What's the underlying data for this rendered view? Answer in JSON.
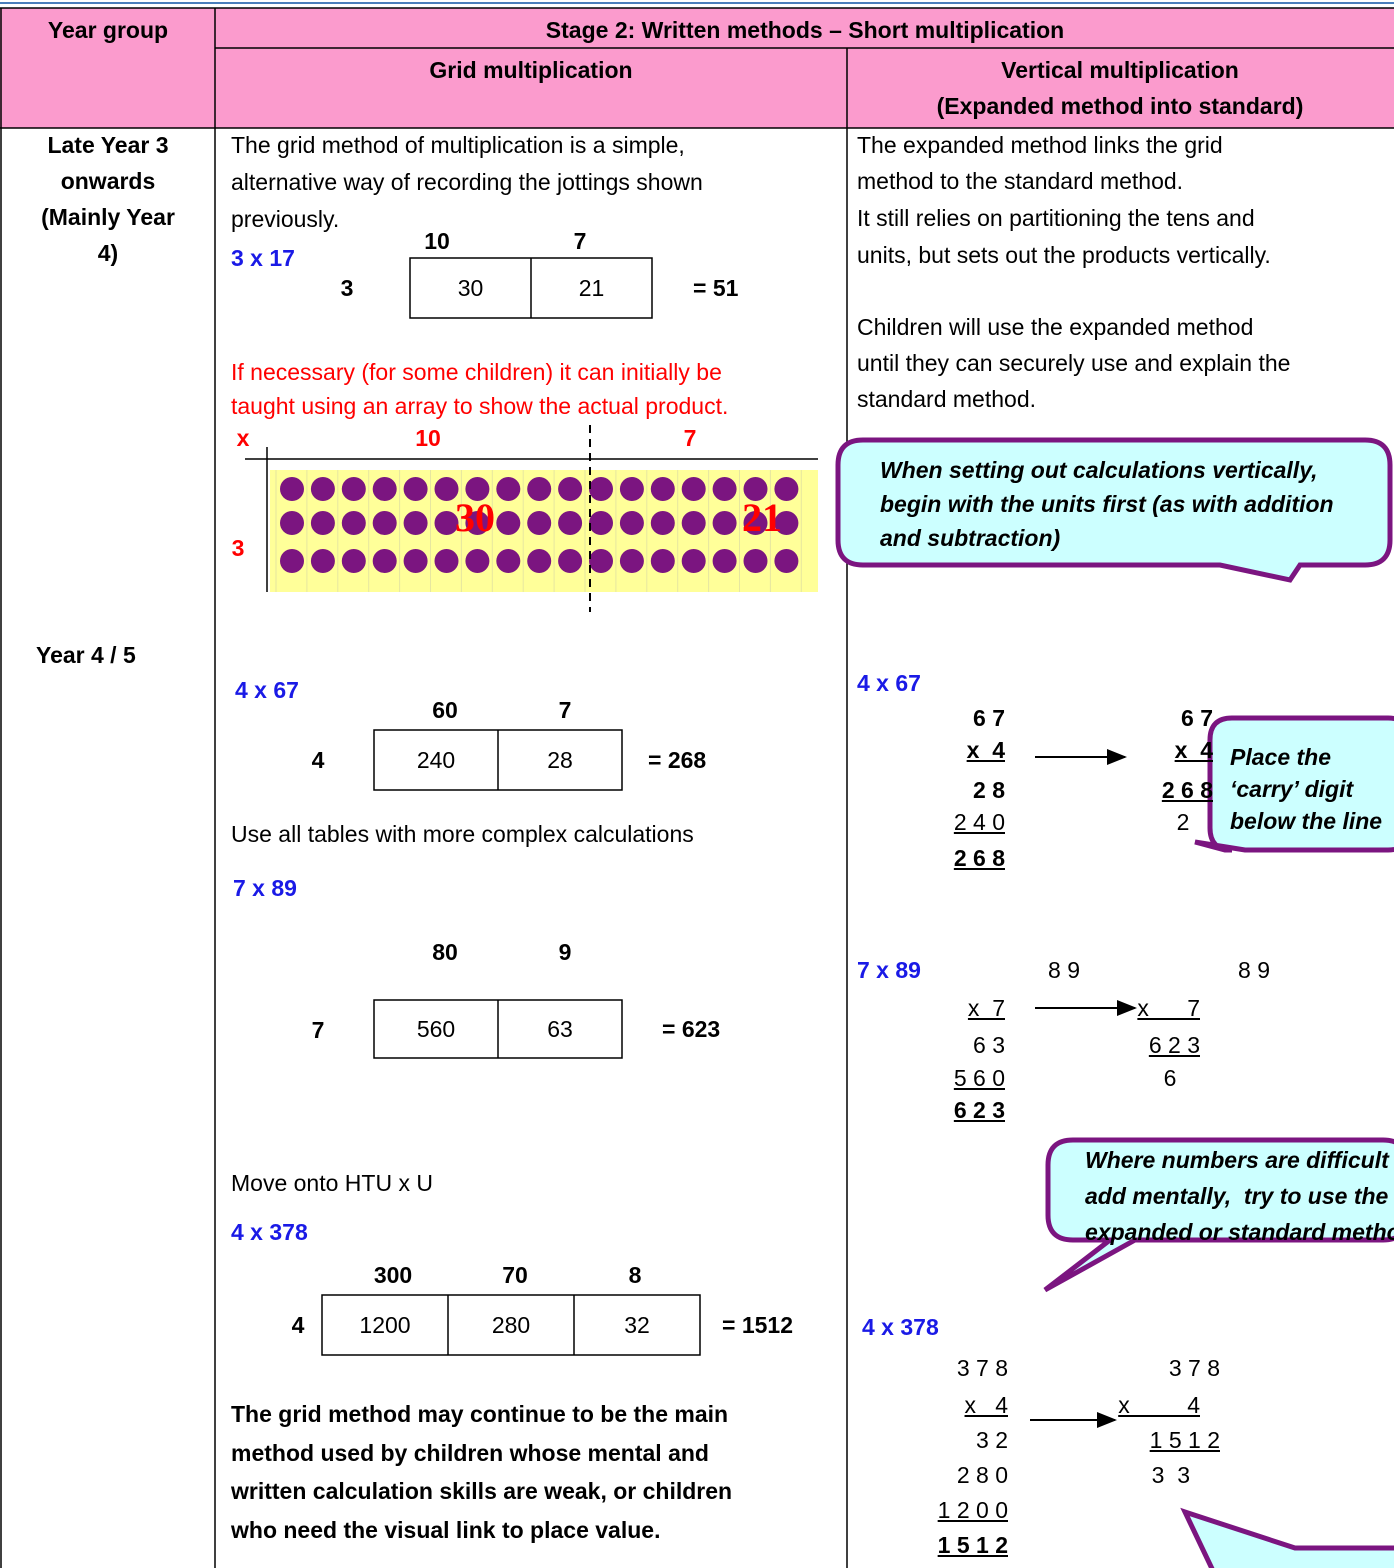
{
  "header": {
    "year_group": "Year group",
    "stage_title": "Stage 2: Written methods – Short multiplication",
    "grid_title": "Grid multiplication",
    "vertical_title": "Vertical multiplication",
    "vertical_subtitle": "(Expanded method into standard)"
  },
  "year_groups": [
    [
      "Late Year 3",
      "onwards",
      "(Mainly Year",
      "4)"
    ],
    [
      "Year 4 / 5"
    ]
  ],
  "grid": {
    "intro": [
      "The grid method of multiplication is a simple,",
      "alternative way of recording the jottings shown",
      "previously."
    ],
    "examples": [
      {
        "label": "3 x 17",
        "columns": [
          "10",
          "7"
        ],
        "row": "3",
        "cells": [
          "30",
          "21"
        ],
        "result": "= 51"
      },
      {
        "label": "4 x 67",
        "columns": [
          "60",
          "7"
        ],
        "row": "4",
        "cells": [
          "240",
          "28"
        ],
        "result": "= 268"
      },
      {
        "label": "7 x 89",
        "columns": [
          "80",
          "9"
        ],
        "row": "7",
        "cells": [
          "560",
          "63"
        ],
        "result": "= 623"
      },
      {
        "label": "4 x 378",
        "columns": [
          "300",
          "70",
          "8"
        ],
        "row": "4",
        "cells": [
          "1200",
          "280",
          "32"
        ],
        "result": "= 1512"
      }
    ],
    "note": [
      "If necessary (for some children) it can initially be",
      "taught using an array to show the actual product."
    ],
    "array": {
      "sign": "x",
      "columns": [
        "10",
        "7"
      ],
      "row": "3",
      "products": [
        "30",
        "21"
      ]
    },
    "tables_note": "Use all tables with more complex calculations",
    "htu_note": "Move onto HTU x U",
    "closing": [
      "The grid method may continue to be the main",
      "method used by children whose mental and",
      "written calculation skills are weak, or children",
      "who need the visual link to place value."
    ]
  },
  "vertical": {
    "paragraphs": [
      [
        "The expanded method links the grid",
        "method to the standard method."
      ],
      [
        "It still relies on partitioning the tens and",
        "units, but sets out the products vertically."
      ],
      [
        "Children will use the expanded method",
        "until they can securely use and explain the",
        "standard method."
      ]
    ],
    "callouts": [
      [
        "When setting out calculations vertically,",
        "begin with the units first (as with addition",
        "and subtraction)"
      ],
      [
        "Place the",
        "‘carry’ digit",
        "below the line"
      ],
      [
        "Where numbers are difficult to",
        "add mentally,  try to use the",
        "expanded or standard method"
      ]
    ],
    "examples": [
      {
        "label": "4 x 67",
        "expanded": [
          "6 7",
          "x  4",
          "2 8",
          "2 4 0",
          "2 6 8"
        ],
        "standard": [
          "6 7",
          "x  4",
          "2 6 8",
          "2"
        ]
      },
      {
        "label": "7 x 89",
        "expanded": [
          "8 9",
          "x  7",
          "6 3",
          "5 6 0",
          "6 2 3"
        ],
        "standard": [
          "8 9",
          "x      7",
          "6 2 3",
          "6"
        ]
      },
      {
        "label": "4 x 378",
        "expanded": [
          "3 7 8",
          "x   4",
          "3 2",
          "2 8 0",
          "1 2 0 0",
          "1 5 1 2"
        ],
        "standard": [
          "3 7 8",
          "x         4",
          "1 5 1 2",
          "3  3"
        ]
      }
    ]
  }
}
